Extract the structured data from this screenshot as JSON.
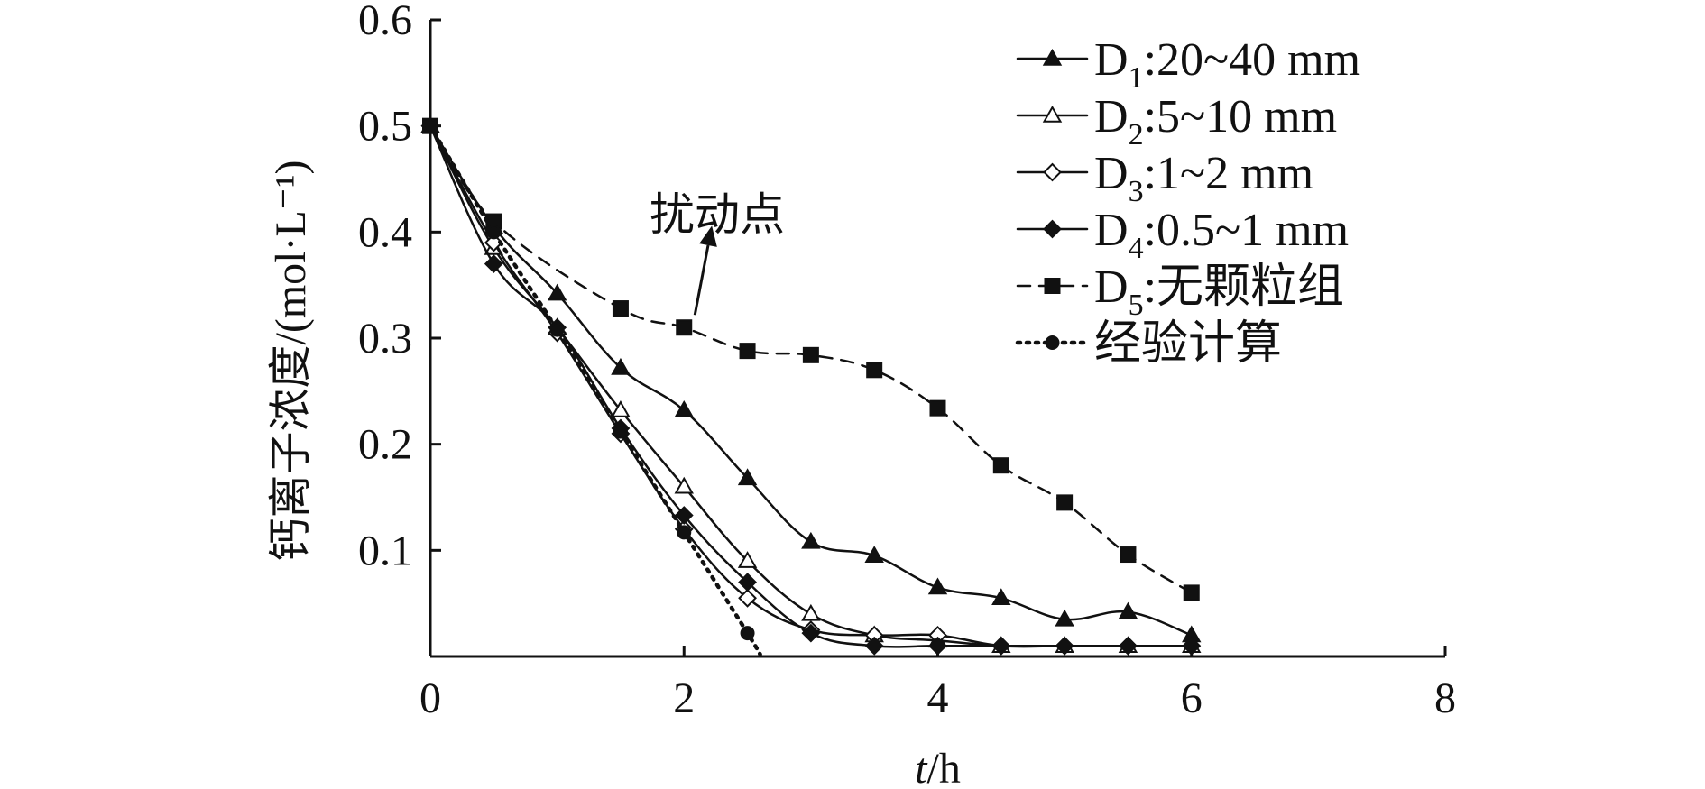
{
  "chart_data": {
    "type": "line",
    "xlabel": "t/h",
    "xlabel_italic": "t",
    "xlabel_rest": "/h",
    "ylabel": "钙离子浓度/(mol·L⁻¹)",
    "xlim": [
      0,
      8
    ],
    "ylim": [
      0,
      0.6
    ],
    "x_ticks": [
      "0",
      "2",
      "4",
      "6",
      "8"
    ],
    "x_tick_values": [
      0,
      2,
      4,
      6,
      8
    ],
    "y_ticks": [
      "0.1",
      "0.2",
      "0.3",
      "0.4",
      "0.5",
      "0.6"
    ],
    "y_tick_values": [
      0.1,
      0.2,
      0.3,
      0.4,
      0.5,
      0.6
    ],
    "grid": false,
    "legend_position": "top-right",
    "annotation": {
      "text": "扰动点",
      "points_to": {
        "x": 2.0,
        "y": 0.31
      }
    },
    "series": [
      {
        "name": "D1:20~40 mm",
        "label_main": "D",
        "label_sub": "1",
        "label_rest": ":20~40 mm",
        "marker": "triangle-filled",
        "dash": "solid",
        "x": [
          0,
          0.5,
          1.0,
          1.5,
          2.0,
          2.5,
          3.0,
          3.5,
          4.0,
          4.5,
          5.0,
          5.5,
          6.0
        ],
        "y": [
          0.5,
          0.405,
          0.342,
          0.272,
          0.232,
          0.168,
          0.108,
          0.095,
          0.065,
          0.055,
          0.035,
          0.042,
          0.02
        ]
      },
      {
        "name": "D2:5~10 mm",
        "label_main": "D",
        "label_sub": "2",
        "label_rest": ":5~10 mm",
        "marker": "triangle-open",
        "dash": "solid",
        "x": [
          0,
          0.5,
          1.0,
          1.5,
          2.0,
          2.5,
          3.0,
          3.5,
          4.0,
          4.5,
          5.0,
          5.5,
          6.0
        ],
        "y": [
          0.5,
          0.385,
          0.31,
          0.232,
          0.16,
          0.09,
          0.04,
          0.02,
          0.015,
          0.01,
          0.01,
          0.01,
          0.01
        ]
      },
      {
        "name": "D3:1~2 mm",
        "label_main": "D",
        "label_sub": "3",
        "label_rest": ":1~2 mm",
        "marker": "diamond-open",
        "dash": "solid",
        "x": [
          0,
          0.5,
          1.0,
          1.5,
          2.0,
          2.5,
          3.0,
          3.5,
          4.0,
          4.5,
          5.0,
          5.5,
          6.0
        ],
        "y": [
          0.5,
          0.39,
          0.305,
          0.21,
          0.12,
          0.055,
          0.025,
          0.02,
          0.02,
          0.01,
          0.01,
          0.01,
          0.01
        ]
      },
      {
        "name": "D4:0.5~1 mm",
        "label_main": "D",
        "label_sub": "4",
        "label_rest": ":0.5~1 mm",
        "marker": "diamond-filled",
        "dash": "solid",
        "x": [
          0,
          0.5,
          1.0,
          1.5,
          2.0,
          2.5,
          3.0,
          3.5,
          4.0,
          4.5,
          5.0,
          5.5,
          6.0
        ],
        "y": [
          0.5,
          0.37,
          0.31,
          0.215,
          0.133,
          0.07,
          0.022,
          0.01,
          0.01,
          0.01,
          0.01,
          0.01,
          0.01
        ]
      },
      {
        "name": "D5:无颗粒组",
        "label_main": "D",
        "label_sub": "5",
        "label_rest": ":无颗粒组",
        "marker": "square-filled",
        "dash": "dashed",
        "x": [
          0,
          0.5,
          1.5,
          2.0,
          2.5,
          3.0,
          3.5,
          4.0,
          4.5,
          5.0,
          5.5,
          6.0
        ],
        "y": [
          0.5,
          0.41,
          0.328,
          0.31,
          0.288,
          0.284,
          0.27,
          0.234,
          0.18,
          0.145,
          0.096,
          0.06
        ]
      },
      {
        "name": "经验计算",
        "label_main": "经验计算",
        "label_sub": "",
        "label_rest": "",
        "marker": "circle-filled",
        "dash": "dotted",
        "x": [
          0,
          0.5,
          1.0,
          1.5,
          2.0,
          2.5,
          2.6
        ],
        "y": [
          0.5,
          0.4,
          0.308,
          0.212,
          0.117,
          0.022,
          0.002
        ]
      }
    ]
  },
  "colors": {
    "ink": "#111111",
    "background": "#ffffff"
  }
}
